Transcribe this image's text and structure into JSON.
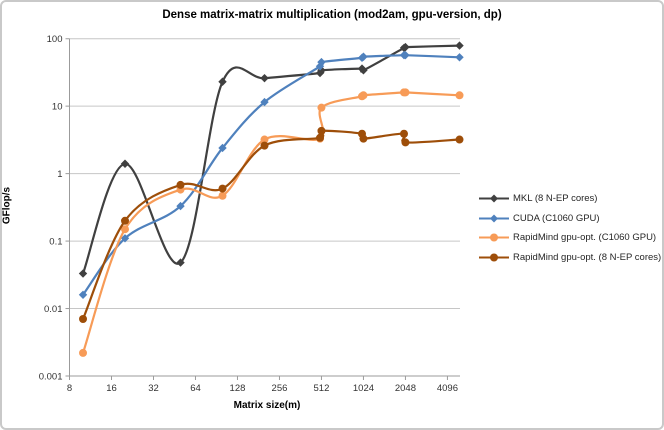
{
  "chart_data": {
    "type": "line",
    "title": "Dense matrix-matrix multiplication (mod2am, gpu-version, dp)",
    "xlabel": "Matrix size(m)",
    "ylabel": "GFlop/s",
    "x_scale": "log2",
    "y_scale": "log10",
    "xlim": [
      8,
      5040
    ],
    "ylim": [
      0.001,
      100
    ],
    "x_ticks": [
      8,
      16,
      32,
      64,
      128,
      256,
      512,
      1024,
      2048,
      4096
    ],
    "y_ticks": [
      100,
      10,
      1,
      0.1,
      0.01,
      0.001
    ],
    "grid": "horizontal",
    "legend_position": "right",
    "x": [
      10,
      20,
      50,
      100,
      200,
      500,
      512,
      1000,
      1024,
      2000,
      2048,
      5000
    ],
    "series": [
      {
        "name": "MKL (8 N-EP cores)",
        "color": "#404040",
        "marker": "diamond",
        "values": [
          0.033,
          1.4,
          0.048,
          23,
          26,
          31,
          34,
          36,
          34,
          73,
          75,
          79
        ]
      },
      {
        "name": "CUDA (C1060 GPU)",
        "color": "#4F81BD",
        "marker": "diamond",
        "values": [
          0.016,
          0.11,
          0.33,
          2.4,
          11.5,
          39,
          45,
          52,
          54,
          57,
          57,
          53
        ]
      },
      {
        "name": "RapidMind gpu-opt. (C1060 GPU)",
        "color": "#F79B57",
        "marker": "circle",
        "values": [
          0.0022,
          0.15,
          0.58,
          0.47,
          3.2,
          3.3,
          9.5,
          14,
          14.5,
          16,
          16,
          14.5
        ]
      },
      {
        "name": "RapidMind gpu-opt. (8 N-EP cores)",
        "color": "#9E4E09",
        "marker": "circle",
        "values": [
          0.007,
          0.2,
          0.68,
          0.6,
          2.6,
          3.4,
          4.3,
          3.9,
          3.3,
          3.9,
          2.9,
          3.2
        ]
      }
    ]
  }
}
